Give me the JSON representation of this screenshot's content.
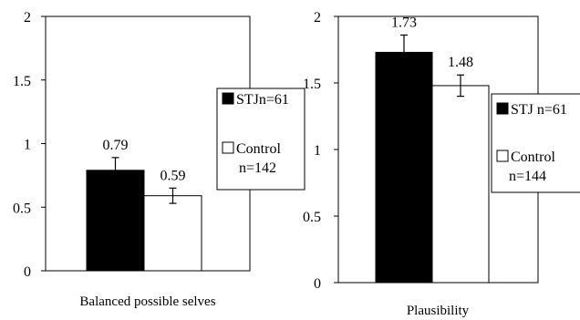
{
  "chart_data": [
    {
      "type": "bar",
      "categories": [
        "STJ",
        "Control"
      ],
      "values": [
        0.79,
        0.59
      ],
      "error": [
        0.1,
        0.06
      ],
      "data_labels": [
        "0.79",
        "0.59"
      ],
      "xlabel": "Balanced possible selves",
      "ylabel": "",
      "ylim": [
        0,
        2
      ],
      "yticks": [
        "0",
        "0.5",
        "1",
        "1.5",
        "2"
      ],
      "legend": [
        {
          "label": "STJn=61",
          "color": "#000000"
        },
        {
          "label": "Control",
          "label2": "n=142",
          "color": "#ffffff"
        }
      ],
      "legend_placement": "right",
      "grid": false
    },
    {
      "type": "bar",
      "categories": [
        "STJ",
        "Control"
      ],
      "values": [
        1.73,
        1.48
      ],
      "error": [
        0.13,
        0.08
      ],
      "data_labels": [
        "1.73",
        "1.48"
      ],
      "xlabel": "Plausibility",
      "ylabel": "",
      "ylim": [
        0,
        2
      ],
      "yticks": [
        "0",
        "0.5",
        "1",
        "1.5",
        "2"
      ],
      "legend": [
        {
          "label": "STJ  n=61",
          "color": "#000000"
        },
        {
          "label": "Control",
          "label2": "n=144",
          "color": "#ffffff"
        }
      ],
      "legend_placement": "right",
      "grid": false
    }
  ]
}
